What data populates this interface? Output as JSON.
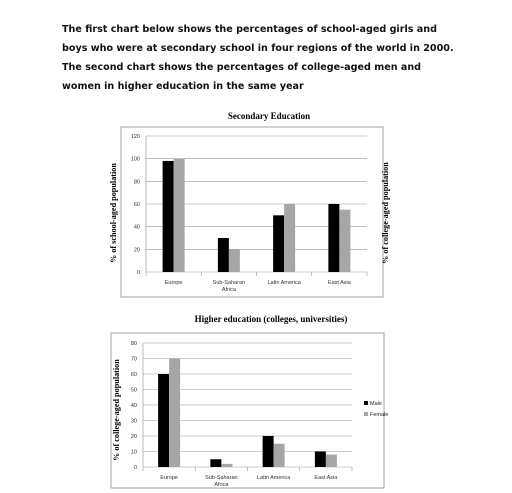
{
  "prompt_text": "The first chart below shows the percentages of school-aged girls and boys who were at secondary school in four regions of the world in 2000. The second chart shows the percentages of college-aged men and women in higher education in the same year",
  "colors": {
    "male": "#000000",
    "female": "#a6a6a6",
    "grid": "#9a9a9a",
    "frame": "#8c8c8c"
  },
  "chart_data": [
    {
      "type": "bar",
      "title": "Secondary Education",
      "ylabel": "% of school-aged population",
      "ylabel_right": "% of college-aged population",
      "categories": [
        "Europe",
        "Sub-Saharan Africa",
        "Latin America",
        "East Asia"
      ],
      "category_lines": [
        [
          "Europe"
        ],
        [
          "Sub-Saharan",
          "Africa"
        ],
        [
          "Latin America"
        ],
        [
          "East Asia"
        ]
      ],
      "series": [
        {
          "values": [
            98,
            30,
            50,
            60
          ]
        },
        {
          "values": [
            100,
            20,
            60,
            55
          ]
        }
      ],
      "ylim": [
        0,
        120
      ],
      "yticks": [
        0,
        20,
        40,
        60,
        80,
        100,
        120
      ],
      "grid": true
    },
    {
      "type": "bar",
      "title": "Higher education (colleges, universities)",
      "ylabel": "% of college-aged population",
      "categories": [
        "Europe",
        "Sub-Saharan Africa",
        "Latin America",
        "East Asia"
      ],
      "category_lines": [
        [
          "Europe"
        ],
        [
          "Sub-Saharan",
          "Africa"
        ],
        [
          "Latin America"
        ],
        [
          "East Asia"
        ]
      ],
      "series": [
        {
          "name": "Male",
          "values": [
            60,
            5,
            20,
            10
          ]
        },
        {
          "name": "Female",
          "values": [
            70,
            2,
            15,
            8
          ]
        }
      ],
      "ylim": [
        0,
        80
      ],
      "yticks": [
        0,
        10,
        20,
        30,
        40,
        50,
        60,
        70,
        80
      ],
      "grid": true,
      "legend": "right"
    }
  ]
}
